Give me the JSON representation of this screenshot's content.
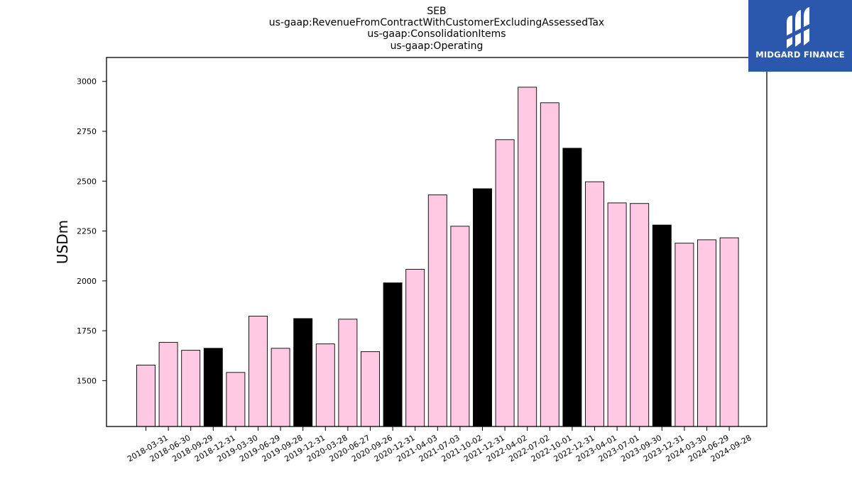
{
  "chart_data": {
    "type": "bar",
    "title_lines": [
      "SEB",
      "us-gaap:RevenueFromContractWithCustomerExcludingAssessedTax",
      "us-gaap:ConsolidationItems",
      "us-gaap:Operating"
    ],
    "ylabel": "USDm",
    "xlabel": "",
    "ylim": [
      1270,
      3120
    ],
    "yticks": [
      1500,
      1750,
      2000,
      2250,
      2500,
      2750,
      3000
    ],
    "grid": false,
    "categories": [
      "2018-03-31",
      "2018-06-30",
      "2018-09-29",
      "2018-12-31",
      "2019-03-30",
      "2019-06-29",
      "2019-09-28",
      "2019-12-31",
      "2020-03-28",
      "2020-06-27",
      "2020-09-26",
      "2020-12-31",
      "2021-04-03",
      "2021-07-03",
      "2021-10-02",
      "2021-12-31",
      "2022-04-02",
      "2022-07-02",
      "2022-10-01",
      "2022-12-31",
      "2023-04-01",
      "2023-07-01",
      "2023-09-30",
      "2023-12-31",
      "2024-03-30",
      "2024-06-29",
      "2024-09-28"
    ],
    "values": [
      1578,
      1692,
      1652,
      1662,
      1541,
      1823,
      1662,
      1811,
      1684,
      1808,
      1645,
      1990,
      2058,
      2431,
      2274,
      2462,
      2708,
      2971,
      2893,
      2665,
      2497,
      2391,
      2388,
      2280,
      2189,
      2206,
      2216
    ],
    "highlight_color": "#000000",
    "normal_color": "#ffc9e4",
    "highlight_categories": [
      "2018-12-31",
      "2019-12-31",
      "2020-12-31",
      "2021-12-31",
      "2022-12-31",
      "2023-12-31"
    ]
  },
  "logo": {
    "text": "MIDGARD FINANCE",
    "icon": "midgard-logo-icon",
    "background": "#2b58ad"
  }
}
